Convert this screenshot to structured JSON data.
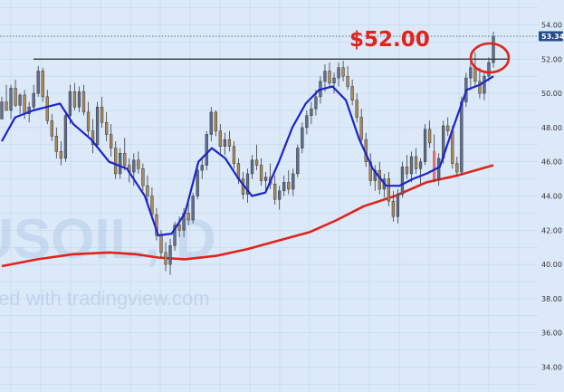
{
  "chart_data": {
    "type": "candlestick",
    "symbol_watermark": "USOIL, D",
    "source_watermark": "ed with tradingview.com",
    "y_axis": {
      "min": 33.0,
      "max": 55.2,
      "ticks": [
        "54.00",
        "52.00",
        "50.00",
        "48.00",
        "46.00",
        "44.00",
        "42.00",
        "40.00",
        "38.00",
        "36.00",
        "34.00"
      ],
      "tick_values": [
        54,
        52,
        50,
        48,
        46,
        44,
        42,
        40,
        38,
        36,
        34
      ]
    },
    "last_price": {
      "label": "53.34",
      "value": 53.34
    },
    "resistance": {
      "value": 52.0,
      "label": "$52.00"
    },
    "colors": {
      "up": "#5f6f8e",
      "down": "#b08a5a",
      "ma_fast": "#1b25c9",
      "ma_slow": "#e0231c",
      "resistance_line": "#333333",
      "annotation": "#e0231c",
      "price_tag_bg": "#244b8a",
      "highlight_bar": "#e87a86",
      "grid": "#a8c0dc",
      "background": "#dbe9f9"
    },
    "grid": true,
    "highlight_candle_index": 95,
    "series": [
      {
        "name": "",
        "kind": "ma_fast",
        "points": [
          [
            0,
            47.2
          ],
          [
            6,
            48.6
          ],
          [
            14,
            49.0
          ],
          [
            20,
            49.2
          ],
          [
            26,
            49.4
          ],
          [
            32,
            48.2
          ],
          [
            40,
            47.3
          ],
          [
            48,
            46.0
          ],
          [
            56,
            45.6
          ],
          [
            64,
            44.0
          ],
          [
            70,
            41.7
          ],
          [
            76,
            41.8
          ],
          [
            82,
            43.0
          ],
          [
            88,
            46.0
          ],
          [
            94,
            46.8
          ],
          [
            100,
            46.2
          ],
          [
            106,
            45.0
          ],
          [
            112,
            44.0
          ],
          [
            118,
            44.2
          ],
          [
            124,
            46.0
          ],
          [
            130,
            48.0
          ],
          [
            136,
            49.4
          ],
          [
            142,
            50.2
          ],
          [
            148,
            50.4
          ],
          [
            154,
            49.6
          ],
          [
            160,
            47.3
          ],
          [
            166,
            45.6
          ],
          [
            172,
            44.6
          ],
          [
            178,
            44.6
          ],
          [
            184,
            45.0
          ],
          [
            190,
            45.3
          ],
          [
            196,
            45.7
          ],
          [
            202,
            48.0
          ],
          [
            208,
            50.2
          ],
          [
            214,
            50.5
          ],
          [
            220,
            51.0
          ]
        ]
      },
      {
        "name": "",
        "kind": "ma_slow",
        "points": [
          [
            0,
            39.9
          ],
          [
            16,
            40.3
          ],
          [
            32,
            40.6
          ],
          [
            48,
            40.7
          ],
          [
            60,
            40.6
          ],
          [
            70,
            40.4
          ],
          [
            82,
            40.3
          ],
          [
            96,
            40.5
          ],
          [
            110,
            40.9
          ],
          [
            124,
            41.4
          ],
          [
            138,
            41.9
          ],
          [
            150,
            42.6
          ],
          [
            162,
            43.4
          ],
          [
            176,
            44.0
          ],
          [
            190,
            44.8
          ],
          [
            204,
            45.2
          ],
          [
            220,
            45.8
          ]
        ]
      }
    ],
    "candles": [
      [
        0,
        48.5,
        49.8,
        48.5,
        49.5
      ],
      [
        1,
        49.5,
        50.5,
        49.0,
        49.0
      ],
      [
        2,
        49.0,
        50.5,
        48.5,
        50.3
      ],
      [
        3,
        50.3,
        50.8,
        49.2,
        49.3
      ],
      [
        4,
        49.3,
        50.0,
        48.8,
        49.9
      ],
      [
        5,
        49.9,
        50.2,
        48.5,
        48.8
      ],
      [
        6,
        48.8,
        49.5,
        48.3,
        49.2
      ],
      [
        7,
        49.2,
        50.5,
        49.0,
        50.0
      ],
      [
        8,
        50.0,
        51.6,
        49.8,
        51.3
      ],
      [
        9,
        51.3,
        51.5,
        49.5,
        49.8
      ],
      [
        10,
        49.8,
        50.2,
        48.2,
        48.4
      ],
      [
        11,
        48.4,
        48.8,
        47.2,
        47.5
      ],
      [
        12,
        47.5,
        48.0,
        46.2,
        46.6
      ],
      [
        13,
        46.6,
        47.2,
        45.8,
        46.2
      ],
      [
        14,
        46.2,
        49.0,
        46.0,
        48.7
      ],
      [
        15,
        48.7,
        50.5,
        48.2,
        50.1
      ],
      [
        16,
        50.1,
        50.6,
        49.0,
        49.2
      ],
      [
        17,
        49.2,
        50.4,
        48.9,
        50.1
      ],
      [
        18,
        50.1,
        50.5,
        48.7,
        48.9
      ],
      [
        19,
        48.9,
        49.5,
        47.5,
        47.8
      ],
      [
        20,
        47.8,
        48.5,
        46.5,
        47.0
      ],
      [
        21,
        47.0,
        49.5,
        46.8,
        49.2
      ],
      [
        22,
        49.2,
        49.8,
        48.0,
        48.3
      ],
      [
        23,
        48.3,
        48.9,
        47.2,
        47.6
      ],
      [
        24,
        47.6,
        48.2,
        46.3,
        46.8
      ],
      [
        25,
        46.8,
        47.2,
        45.0,
        45.3
      ],
      [
        26,
        45.3,
        46.8,
        45.0,
        46.5
      ],
      [
        27,
        46.5,
        47.4,
        45.5,
        45.8
      ],
      [
        28,
        45.8,
        46.2,
        44.8,
        45.4
      ],
      [
        29,
        45.4,
        46.5,
        44.6,
        46.1
      ],
      [
        30,
        46.1,
        46.6,
        45.3,
        45.6
      ],
      [
        31,
        45.6,
        45.9,
        44.3,
        44.6
      ],
      [
        32,
        44.6,
        45.2,
        43.6,
        44.0
      ],
      [
        33,
        44.0,
        44.5,
        42.6,
        42.9
      ],
      [
        34,
        42.9,
        43.3,
        41.4,
        41.7
      ],
      [
        35,
        41.7,
        42.0,
        40.4,
        40.7
      ],
      [
        36,
        40.7,
        41.3,
        39.6,
        40.0
      ],
      [
        37,
        40.0,
        41.5,
        39.4,
        41.1
      ],
      [
        38,
        41.1,
        42.5,
        40.8,
        42.3
      ],
      [
        39,
        42.3,
        42.8,
        41.6,
        42.0
      ],
      [
        40,
        42.0,
        43.3,
        41.6,
        43.0
      ],
      [
        41,
        43.0,
        43.6,
        42.3,
        42.6
      ],
      [
        42,
        42.6,
        44.2,
        42.4,
        44.0
      ],
      [
        43,
        44.0,
        45.8,
        43.8,
        45.5
      ],
      [
        44,
        45.5,
        46.2,
        45.0,
        45.8
      ],
      [
        45,
        45.8,
        47.8,
        45.5,
        47.6
      ],
      [
        46,
        47.6,
        49.2,
        47.2,
        48.9
      ],
      [
        47,
        48.9,
        49.0,
        47.5,
        47.8
      ],
      [
        48,
        47.8,
        48.2,
        46.5,
        46.9
      ],
      [
        49,
        46.9,
        47.7,
        46.4,
        47.3
      ],
      [
        50,
        47.3,
        47.8,
        46.6,
        46.9
      ],
      [
        51,
        46.9,
        47.2,
        45.6,
        45.9
      ],
      [
        52,
        45.9,
        46.2,
        44.7,
        45.0
      ],
      [
        53,
        45.0,
        45.4,
        43.8,
        44.1
      ],
      [
        54,
        44.1,
        45.6,
        43.6,
        45.3
      ],
      [
        55,
        45.3,
        46.4,
        45.0,
        46.1
      ],
      [
        56,
        46.1,
        47.0,
        45.5,
        45.8
      ],
      [
        57,
        45.8,
        46.2,
        44.6,
        44.9
      ],
      [
        58,
        44.9,
        45.4,
        44.2,
        45.1
      ],
      [
        59,
        45.1,
        45.9,
        44.4,
        44.7
      ],
      [
        60,
        44.7,
        45.2,
        43.5,
        43.8
      ],
      [
        61,
        43.8,
        44.6,
        43.2,
        44.3
      ],
      [
        62,
        44.3,
        45.2,
        44.0,
        44.8
      ],
      [
        63,
        44.8,
        45.5,
        44.1,
        44.4
      ],
      [
        64,
        44.4,
        45.6,
        44.0,
        45.3
      ],
      [
        65,
        45.3,
        47.0,
        45.1,
        46.8
      ],
      [
        66,
        46.8,
        48.3,
        46.5,
        48.0
      ],
      [
        67,
        48.0,
        49.0,
        47.6,
        48.7
      ],
      [
        68,
        48.7,
        49.5,
        48.2,
        49.1
      ],
      [
        69,
        49.1,
        50.2,
        48.7,
        49.8
      ],
      [
        70,
        49.8,
        51.0,
        49.4,
        50.7
      ],
      [
        71,
        50.7,
        51.7,
        50.1,
        51.3
      ],
      [
        72,
        51.3,
        51.8,
        50.3,
        50.6
      ],
      [
        73,
        50.6,
        51.2,
        50.0,
        50.9
      ],
      [
        74,
        50.9,
        51.8,
        50.4,
        51.5
      ],
      [
        75,
        51.5,
        51.9,
        50.7,
        51.0
      ],
      [
        76,
        51.0,
        51.6,
        50.2,
        50.4
      ],
      [
        77,
        50.4,
        50.8,
        49.3,
        49.6
      ],
      [
        78,
        49.6,
        50.0,
        48.3,
        48.6
      ],
      [
        79,
        48.6,
        49.1,
        47.0,
        47.3
      ],
      [
        80,
        47.3,
        47.7,
        45.7,
        46.0
      ],
      [
        81,
        46.0,
        46.5,
        44.6,
        44.9
      ],
      [
        82,
        44.9,
        45.8,
        44.3,
        45.5
      ],
      [
        83,
        45.5,
        46.0,
        44.1,
        44.4
      ],
      [
        84,
        44.4,
        45.3,
        43.9,
        45.0
      ],
      [
        85,
        45.0,
        45.4,
        43.4,
        43.7
      ],
      [
        86,
        43.7,
        44.3,
        42.5,
        42.8
      ],
      [
        87,
        42.8,
        44.4,
        42.4,
        44.1
      ],
      [
        88,
        44.1,
        46.0,
        43.9,
        45.7
      ],
      [
        89,
        45.7,
        46.4,
        45.0,
        45.3
      ],
      [
        90,
        45.3,
        46.6,
        44.8,
        46.3
      ],
      [
        91,
        46.3,
        46.8,
        45.3,
        45.6
      ],
      [
        92,
        45.6,
        46.2,
        44.7,
        46.0
      ],
      [
        93,
        46.0,
        48.2,
        45.8,
        47.9
      ],
      [
        94,
        47.9,
        48.4,
        46.8,
        47.1
      ],
      [
        95,
        46.6,
        47.6,
        44.8,
        45.0
      ],
      [
        96,
        45.0,
        46.5,
        44.6,
        46.2
      ],
      [
        97,
        46.2,
        48.4,
        45.9,
        48.1
      ],
      [
        98,
        48.1,
        48.6,
        47.5,
        47.8
      ],
      [
        99,
        47.8,
        48.1,
        45.6,
        45.9
      ],
      [
        100,
        45.9,
        46.3,
        45.2,
        45.4
      ],
      [
        101,
        45.4,
        49.8,
        45.2,
        49.5
      ],
      [
        102,
        49.5,
        51.2,
        49.2,
        50.9
      ],
      [
        103,
        50.9,
        51.8,
        50.2,
        51.5
      ],
      [
        104,
        51.5,
        52.4,
        50.4,
        50.7
      ],
      [
        105,
        50.7,
        51.5,
        49.7,
        50.0
      ],
      [
        106,
        50.0,
        51.3,
        49.6,
        51.0
      ],
      [
        107,
        51.0,
        52.1,
        50.7,
        51.8
      ],
      [
        108,
        51.8,
        53.6,
        51.5,
        53.3
      ]
    ]
  }
}
